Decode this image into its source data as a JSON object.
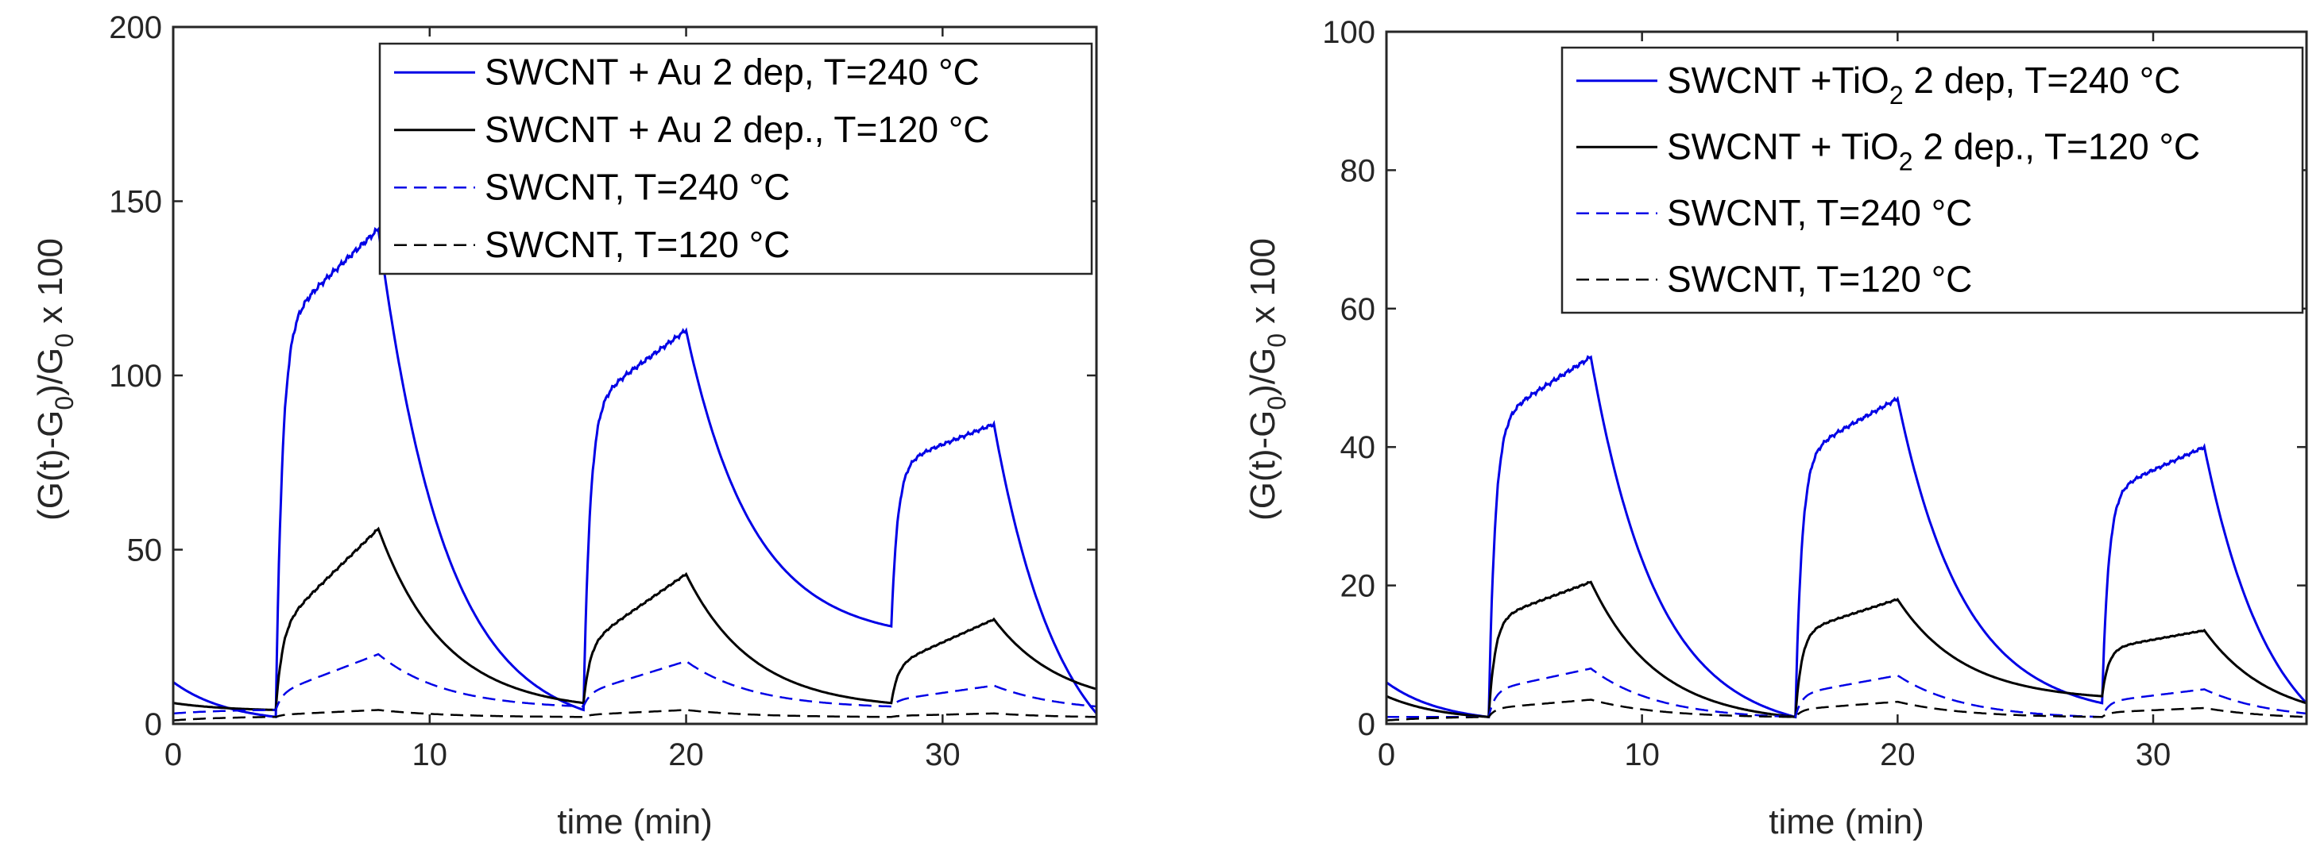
{
  "colors": {
    "blue": "#0000e6",
    "black": "#000000",
    "axis": "#262626"
  },
  "chart_data": [
    {
      "type": "line",
      "title": "",
      "xlabel": "time (min)",
      "ylabel_parts": {
        "pre": "(G(t)-G",
        "sub1": "0",
        "mid": ")/G",
        "sub2": "0",
        "post": " x 100"
      },
      "xlim": [
        0,
        36
      ],
      "ylim": [
        0,
        200
      ],
      "xticks": [
        "0",
        "10",
        "20",
        "30"
      ],
      "xtick_values": [
        0,
        10,
        20,
        30
      ],
      "yticks": [
        "0",
        "50",
        "100",
        "150",
        "200"
      ],
      "ytick_values": [
        0,
        50,
        100,
        150,
        200
      ],
      "legend_position": "top-right",
      "series": [
        {
          "name": "SWCNT + Au 2 dep, T=240 °C",
          "label_parts": {
            "pre": "SWCNT + Au 2 dep, T=240 °C"
          },
          "color": "#0000e6",
          "style": "solid",
          "baseline": [
            12,
            2,
            4,
            2,
            28,
            3
          ],
          "peaks": [
            142,
            113,
            86
          ],
          "amp_fast": 0.8
        },
        {
          "name": "SWCNT + Au 2 dep., T=120 °C",
          "label_parts": {
            "pre": "SWCNT + Au 2 dep., T=120 °C"
          },
          "color": "#000000",
          "style": "solid",
          "baseline": [
            6,
            4,
            6,
            4,
            6,
            10
          ],
          "peaks": [
            56,
            43,
            30
          ],
          "amp_fast": 0.45
        },
        {
          "name": "SWCNT, T=240 °C",
          "label_parts": {
            "pre": "SWCNT, T=240 °C"
          },
          "color": "#0000e6",
          "style": "dashed",
          "baseline": [
            3,
            4,
            5,
            4,
            5,
            5
          ],
          "peaks": [
            20,
            18,
            11
          ],
          "amp_fast": 0.3
        },
        {
          "name": "SWCNT, T=120 °C",
          "label_parts": {
            "pre": "SWCNT, T=120 °C"
          },
          "color": "#000000",
          "style": "dashed",
          "baseline": [
            1,
            2,
            2,
            2,
            2,
            2
          ],
          "peaks": [
            4,
            4,
            3
          ],
          "amp_fast": 0.3
        }
      ]
    },
    {
      "type": "line",
      "title": "",
      "xlabel": "time (min)",
      "ylabel_parts": {
        "pre": "(G(t)-G",
        "sub1": "0",
        "mid": ")/G",
        "sub2": "0",
        "post": " x 100"
      },
      "xlim": [
        0,
        36
      ],
      "ylim": [
        0,
        100
      ],
      "xticks": [
        "0",
        "10",
        "20",
        "30"
      ],
      "xtick_values": [
        0,
        10,
        20,
        30
      ],
      "yticks": [
        "0",
        "20",
        "40",
        "60",
        "80",
        "100"
      ],
      "ytick_values": [
        0,
        20,
        40,
        60,
        80,
        100
      ],
      "legend_position": "top-right",
      "series": [
        {
          "name": "SWCNT +TiO2 2 dep, T=240 °C",
          "label_parts": {
            "pre": "SWCNT +TiO",
            "sub": "2",
            "post": " 2 dep, T=240 °C"
          },
          "color": "#0000e6",
          "style": "solid",
          "baseline": [
            6,
            1,
            1,
            0,
            3,
            3
          ],
          "peaks": [
            53,
            47,
            40
          ],
          "amp_fast": 0.82
        },
        {
          "name": "SWCNT + TiO2 2 dep., T=120 °C",
          "label_parts": {
            "pre": "SWCNT + TiO",
            "sub": "2",
            "post": " 2 dep., T=120 °C"
          },
          "color": "#000000",
          "style": "solid",
          "baseline": [
            4,
            1,
            1,
            0,
            4,
            3
          ],
          "peaks": [
            20.5,
            18,
            13.5
          ],
          "amp_fast": 0.72
        },
        {
          "name": "SWCNT, T=240 °C",
          "label_parts": {
            "pre": "SWCNT, T=240 °C"
          },
          "color": "#0000e6",
          "style": "dashed",
          "baseline": [
            1,
            1,
            1,
            1,
            1,
            1.5
          ],
          "peaks": [
            8,
            7,
            5
          ],
          "amp_fast": 0.55
        },
        {
          "name": "SWCNT, T=120 °C",
          "label_parts": {
            "pre": "SWCNT, T=120 °C"
          },
          "color": "#000000",
          "style": "dashed",
          "baseline": [
            0.5,
            1,
            1,
            1,
            1,
            1
          ],
          "peaks": [
            3.5,
            3.2,
            2.3
          ],
          "amp_fast": 0.5
        }
      ]
    }
  ]
}
